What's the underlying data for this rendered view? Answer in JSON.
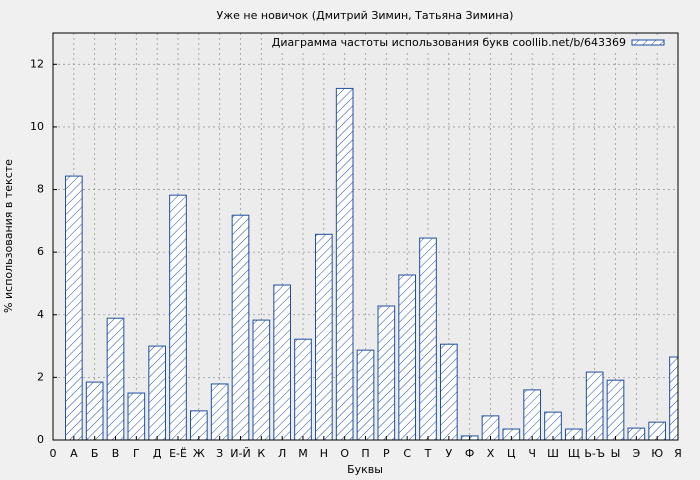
{
  "chart_data": {
    "type": "bar",
    "title": "Уже не новичок (Дмитрий Зимин, Татьяна Зимина)",
    "xlabel": "Буквы",
    "ylabel": "% использования в тексте",
    "x": [
      1,
      2,
      3,
      4,
      5,
      6,
      7,
      8,
      9,
      10,
      11,
      12,
      13,
      14,
      15,
      16,
      17,
      18,
      19,
      20,
      21,
      22,
      23,
      24,
      25,
      26,
      27,
      28,
      29,
      30
    ],
    "series": [
      {
        "name": "Диаграмма частоты использования букв coollib.net/b/643369",
        "color": "#1f4f9f",
        "hatch": true,
        "values": [
          8.43,
          1.85,
          3.89,
          1.5,
          3.0,
          7.82,
          0.93,
          1.79,
          7.18,
          3.83,
          4.95,
          3.22,
          6.57,
          11.23,
          2.87,
          4.28,
          5.27,
          6.45,
          3.06,
          0.13,
          0.77,
          0.35,
          1.6,
          0.89,
          0.35,
          2.17,
          1.91,
          0.38,
          0.57,
          2.65
        ]
      }
    ],
    "xlim": [
      0,
      30
    ],
    "xticks": [
      0,
      {
        "value": 1,
        "label": "А"
      },
      {
        "value": 2,
        "label": "Б"
      },
      {
        "value": 3,
        "label": "В"
      },
      {
        "value": 4,
        "label": "Г"
      },
      {
        "value": 5,
        "label": "Д"
      },
      {
        "value": 6,
        "label": "Е-Ё"
      },
      {
        "value": 7,
        "label": "Ж"
      },
      {
        "value": 8,
        "label": "З"
      },
      {
        "value": 9,
        "label": "И-Й"
      },
      {
        "value": 10,
        "label": "К"
      },
      {
        "value": 11,
        "label": "Л"
      },
      {
        "value": 12,
        "label": "М"
      },
      {
        "value": 13,
        "label": "Н"
      },
      {
        "value": 14,
        "label": "О"
      },
      {
        "value": 15,
        "label": "П"
      },
      {
        "value": 16,
        "label": "Р"
      },
      {
        "value": 17,
        "label": "С"
      },
      {
        "value": 18,
        "label": "Т"
      },
      {
        "value": 19,
        "label": "У"
      },
      {
        "value": 20,
        "label": "Ф"
      },
      {
        "value": 21,
        "label": "Х"
      },
      {
        "value": 22,
        "label": "Ц"
      },
      {
        "value": 23,
        "label": "Ч"
      },
      {
        "value": 24,
        "label": "Ш"
      },
      {
        "value": 25,
        "label": "Щ"
      },
      {
        "value": 26,
        "label": "Ь-Ъ"
      },
      {
        "value": 27,
        "label": "Ы"
      },
      {
        "value": 28,
        "label": "Э"
      },
      {
        "value": 29,
        "label": "Ю"
      },
      {
        "value": 30,
        "label": "Я"
      }
    ],
    "ylim": [
      0,
      13
    ],
    "yticks": [
      0,
      2,
      4,
      6,
      8,
      10,
      12
    ],
    "grid": true,
    "legend": "upper right"
  }
}
